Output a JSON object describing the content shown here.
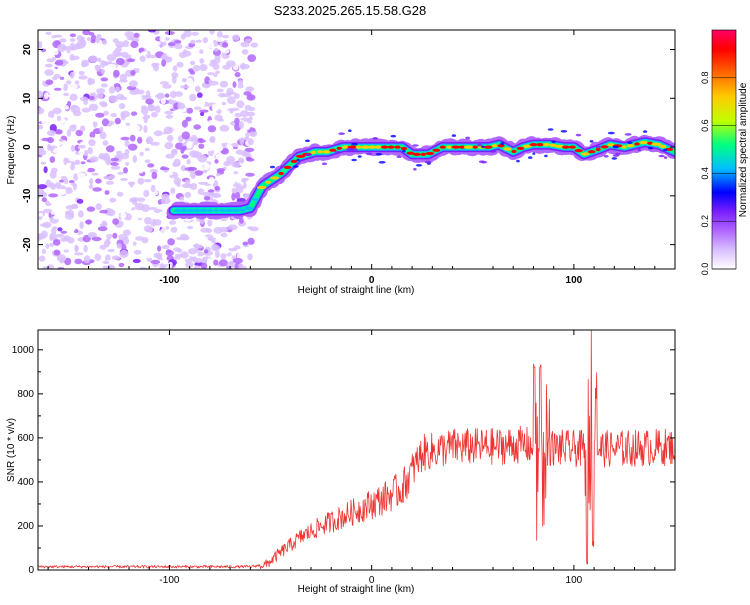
{
  "title": "S233.2025.265.15.58.G28",
  "colors": {
    "snr_line": "#ee3333",
    "axis": "#000000",
    "colormap": [
      "#ffffff",
      "#d9bfff",
      "#b066ff",
      "#7a1fff",
      "#0000ff",
      "#00bfff",
      "#00ff80",
      "#bfff00",
      "#ffcc00",
      "#ff6600",
      "#ff0000",
      "#ff0066"
    ]
  },
  "colorbar": {
    "label": "Normalized spectral amplitude",
    "ticks": [
      0.0,
      0.2,
      0.4,
      0.6,
      0.8
    ],
    "tick_labels": [
      "0.0",
      "0.2",
      "0.4",
      "0.6",
      "0.8"
    ],
    "range": [
      0,
      1
    ]
  },
  "chart_data": [
    {
      "type": "heatmap",
      "name": "spectrogram",
      "xlabel": "Height of straight line (km)",
      "ylabel": "Frequency (Hz)",
      "xlim": [
        -165,
        150
      ],
      "ylim": [
        -25,
        24
      ],
      "xticks": [
        -100,
        0,
        100
      ],
      "xtick_labels": [
        "-100",
        "0",
        "100"
      ],
      "yticks": [
        -20,
        -10,
        0,
        10,
        20
      ],
      "ytick_labels": [
        "-20",
        "-10",
        "0",
        "10",
        "20"
      ],
      "noise_region_x": [
        -165,
        -58
      ],
      "ridge": {
        "x": [
          -98,
          -65,
          -60,
          -54,
          -45,
          -36,
          -28,
          -22,
          -14,
          0,
          15,
          20,
          28,
          35,
          45,
          50,
          58,
          63,
          70,
          75,
          80,
          88,
          95,
          100,
          105,
          112,
          118,
          125,
          135,
          142,
          150
        ],
        "frequency_hz": [
          -13,
          -13,
          -12.5,
          -8,
          -5.5,
          -2,
          -1,
          -1,
          0,
          0,
          0,
          -1.5,
          -1.5,
          0,
          0,
          0,
          0,
          0.5,
          -1,
          0,
          0.5,
          0.5,
          0,
          0,
          -1.5,
          -0.5,
          0.5,
          0,
          1,
          0.5,
          -1
        ]
      }
    },
    {
      "type": "line",
      "name": "snr",
      "xlabel": "Height of straight line (km)",
      "ylabel": "SNR (10 * v/v)",
      "xlim": [
        -165,
        150
      ],
      "ylim": [
        0,
        1090
      ],
      "xticks": [
        -100,
        0,
        100
      ],
      "xtick_labels": [
        "-100",
        "0",
        "100"
      ],
      "yticks": [
        0,
        200,
        400,
        600,
        800,
        1000
      ],
      "ytick_labels": [
        "0",
        "200",
        "400",
        "600",
        "800",
        "1000"
      ],
      "trend": {
        "x": [
          -165,
          -60,
          -52,
          -45,
          -35,
          -25,
          -15,
          -5,
          5,
          15,
          25,
          40,
          60,
          75,
          80,
          100,
          120,
          150
        ],
        "y": [
          15,
          15,
          25,
          80,
          150,
          200,
          240,
          280,
          320,
          370,
          530,
          560,
          560,
          570,
          560,
          550,
          550,
          560
        ]
      },
      "spikes": [
        {
          "x": 80.5,
          "y": 930
        },
        {
          "x": 82,
          "y": 130
        },
        {
          "x": 83.5,
          "y": 920
        },
        {
          "x": 85,
          "y": 200
        },
        {
          "x": 86.5,
          "y": 830
        },
        {
          "x": 106.5,
          "y": 40
        },
        {
          "x": 107.5,
          "y": 880
        },
        {
          "x": 108.5,
          "y": 1085
        },
        {
          "x": 109.5,
          "y": 120
        },
        {
          "x": 111,
          "y": 900
        }
      ]
    }
  ]
}
